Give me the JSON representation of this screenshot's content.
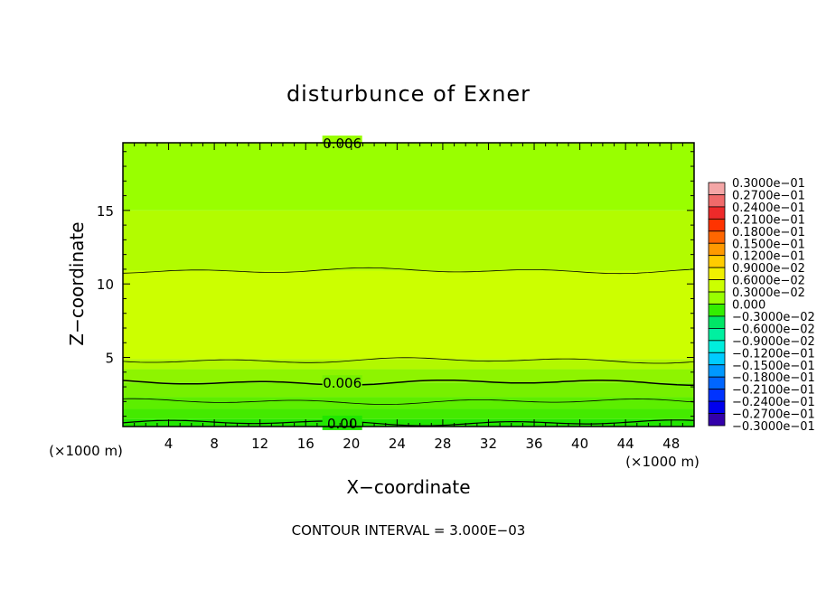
{
  "chart_data": {
    "type": "heatmap",
    "title": "disturbunce of Exner",
    "xlabel": "X−coordinate",
    "ylabel": "Z−coordinate",
    "x_unit_left": "(×1000 m)",
    "x_unit_right": "(×1000 m)",
    "footer": "CONTOUR INTERVAL = 3.000E−03",
    "xlim": [
      0,
      50
    ],
    "ylim": [
      0.3,
      19.6
    ],
    "xticks": [
      {
        "value": 4,
        "label": "4"
      },
      {
        "value": 8,
        "label": "8"
      },
      {
        "value": 12,
        "label": "12"
      },
      {
        "value": 16,
        "label": "16"
      },
      {
        "value": 20,
        "label": "20"
      },
      {
        "value": 24,
        "label": "24"
      },
      {
        "value": 28,
        "label": "28"
      },
      {
        "value": 32,
        "label": "32"
      },
      {
        "value": 36,
        "label": "36"
      },
      {
        "value": 40,
        "label": "40"
      },
      {
        "value": 44,
        "label": "44"
      },
      {
        "value": 48,
        "label": "48"
      }
    ],
    "yticks": [
      {
        "value": 5,
        "label": "5"
      },
      {
        "value": 10,
        "label": "10"
      },
      {
        "value": 15,
        "label": "15"
      }
    ],
    "fill_bands": [
      {
        "z0": 0.3,
        "z1": 0.8,
        "color": "#22e600"
      },
      {
        "z0": 0.8,
        "z1": 1.5,
        "color": "#44ea00"
      },
      {
        "z0": 1.5,
        "z1": 2.3,
        "color": "#5cee00"
      },
      {
        "z0": 2.3,
        "z1": 3.3,
        "color": "#77f000"
      },
      {
        "z0": 3.3,
        "z1": 4.2,
        "color": "#8ef400"
      },
      {
        "z0": 4.2,
        "z1": 4.9,
        "color": "#b2f800"
      },
      {
        "z0": 4.9,
        "z1": 10.9,
        "color": "#ccff00"
      },
      {
        "z0": 10.9,
        "z1": 15.0,
        "color": "#b2fc00"
      },
      {
        "z0": 15.0,
        "z1": 19.6,
        "color": "#99ff00"
      }
    ],
    "contours": [
      {
        "z": 0.55,
        "width": 1.2,
        "label": "0.00",
        "label_x": 19.2
      },
      {
        "z": 2.0,
        "width": 0.8,
        "label": "",
        "label_x": 0
      },
      {
        "z": 3.3,
        "width": 1.5,
        "label": "0.006",
        "label_x": 19.2
      },
      {
        "z": 4.8,
        "width": 0.8,
        "label": "",
        "label_x": 0
      },
      {
        "z": 10.9,
        "width": 0.8,
        "label": "",
        "label_x": 0
      },
      {
        "z": 19.6,
        "width": 0.8,
        "label": "0.006",
        "label_x": 19.2
      }
    ],
    "colorbar": {
      "levels": [
        {
          "label": "0.3000e−01",
          "color": "#f4a6a6"
        },
        {
          "label": "0.2700e−01",
          "color": "#f06a6a"
        },
        {
          "label": "0.2400e−01",
          "color": "#ee2a2a"
        },
        {
          "label": "0.2100e−01",
          "color": "#ff3300"
        },
        {
          "label": "0.1800e−01",
          "color": "#ff6600"
        },
        {
          "label": "0.1500e−01",
          "color": "#ff9900"
        },
        {
          "label": "0.1200e−01",
          "color": "#ffcc00"
        },
        {
          "label": "0.9000e−02",
          "color": "#f0f000"
        },
        {
          "label": "0.6000e−02",
          "color": "#ccff00"
        },
        {
          "label": "0.3000e−02",
          "color": "#99ff00"
        },
        {
          "label": "0.000",
          "color": "#33ee00"
        },
        {
          "label": "−0.3000e−02",
          "color": "#00e666"
        },
        {
          "label": "−0.6000e−02",
          "color": "#00f0a0"
        },
        {
          "label": "−0.9000e−02",
          "color": "#00eedd"
        },
        {
          "label": "−0.1200e−01",
          "color": "#00ccff"
        },
        {
          "label": "−0.1500e−01",
          "color": "#0099ff"
        },
        {
          "label": "−0.1800e−01",
          "color": "#0066ff"
        },
        {
          "label": "−0.2100e−01",
          "color": "#0033ff"
        },
        {
          "label": "−0.2400e−01",
          "color": "#0000ee"
        },
        {
          "label": "−0.2700e−01",
          "color": "#3300aa"
        },
        {
          "label": "−0.3000e−01",
          "color": "#660099"
        }
      ]
    }
  }
}
